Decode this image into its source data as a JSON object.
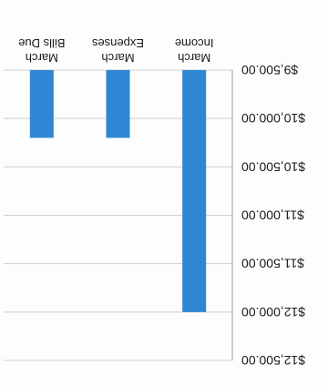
{
  "chart_data": {
    "type": "bar",
    "orientation": "rotated-180",
    "categories": [
      [
        "March",
        "Income"
      ],
      [
        "March",
        "Expenses"
      ],
      [
        "March",
        "Bills Due"
      ]
    ],
    "values": [
      12000,
      10200,
      10200
    ],
    "ylim": [
      9500,
      12500
    ],
    "yticks": [
      "$9,500.00",
      "$10,000.00",
      "$10,500.00",
      "$11,000.00",
      "$11,500.00",
      "$12,000.00",
      "$12,500.00"
    ],
    "ytick_values": [
      9500,
      10000,
      10500,
      11000,
      11500,
      12000,
      12500
    ],
    "grid": true,
    "bar_color": "#2e86d4"
  }
}
